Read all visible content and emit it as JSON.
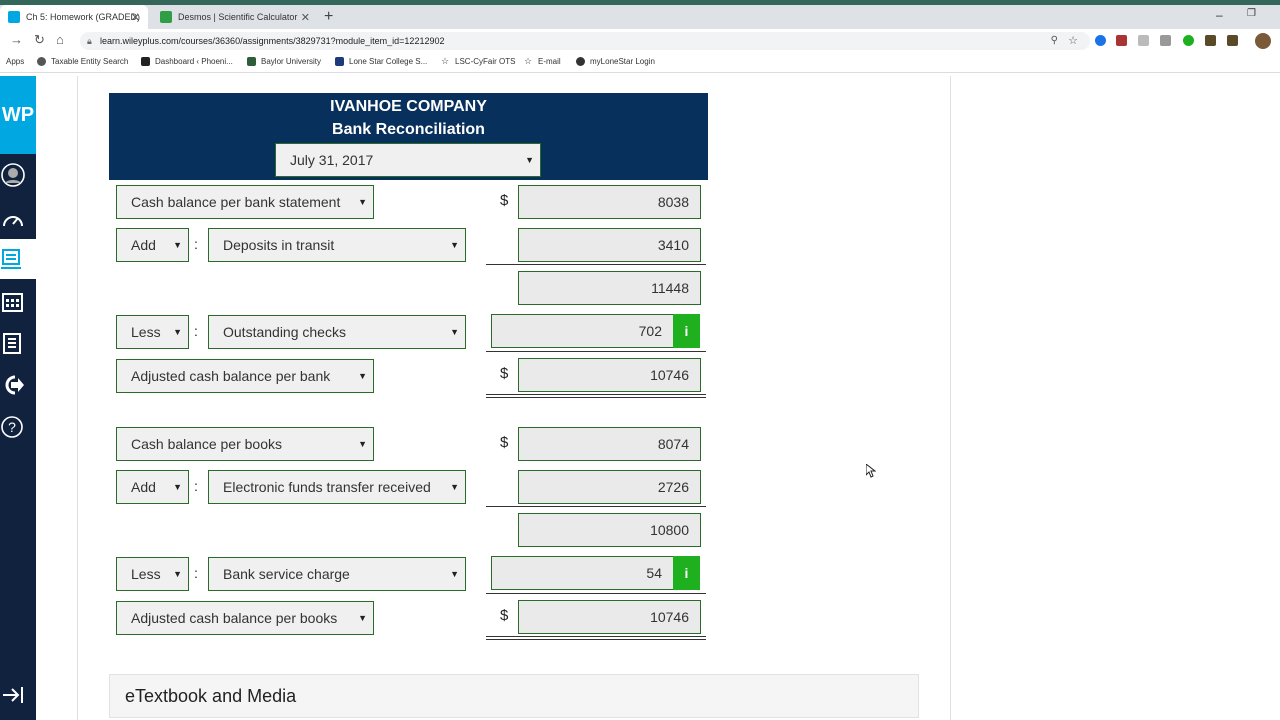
{
  "browser": {
    "tabs": [
      {
        "title": "Ch 5: Homework (GRADED)"
      },
      {
        "title": "Desmos | Scientific Calculator"
      }
    ],
    "new_tab_glyph": "+",
    "url": "learn.wileyplus.com/courses/36360/assignments/3829731?module_item_id=12212902",
    "bookmarks": [
      {
        "label": "Apps"
      },
      {
        "label": "Taxable Entity Search"
      },
      {
        "label": "Dashboard ‹ Phoeni..."
      },
      {
        "label": "Baylor University"
      },
      {
        "label": "Lone Star College S..."
      },
      {
        "label": "LSC-CyFair OTS"
      },
      {
        "label": "E-mail"
      },
      {
        "label": "myLoneStar Login"
      }
    ]
  },
  "sidebar": {
    "logo": "WP",
    "icons": [
      "user-icon",
      "dashboard-gauge-icon",
      "assignment-icon",
      "calendar-icon",
      "gradebook-icon",
      "logout-icon",
      "help-icon",
      "collapse-icon"
    ]
  },
  "reconciliation": {
    "company": "IVANHOE COMPANY",
    "title": "Bank Reconciliation",
    "date": "July 31, 2017",
    "currency": "$",
    "bank_section": {
      "start_label": "Cash balance per bank statement",
      "start_value": "8038",
      "add_op": "Add",
      "add_label": "Deposits in transit",
      "add_value": "3410",
      "subtotal": "11448",
      "less_op": "Less",
      "less_label": "Outstanding checks",
      "less_value": "702",
      "adjusted_label": "Adjusted cash balance per bank",
      "adjusted_value": "10746"
    },
    "books_section": {
      "start_label": "Cash balance per books",
      "start_value": "8074",
      "add_op": "Add",
      "add_label": "Electronic funds transfer received",
      "add_value": "2726",
      "subtotal": "10800",
      "less_op": "Less",
      "less_label": "Bank service charge",
      "less_value": "54",
      "adjusted_label": "Adjusted cash balance per books",
      "adjusted_value": "10746"
    },
    "info_glyph": "i",
    "colon": ":"
  },
  "etextbook": {
    "label": "eTextbook and Media"
  },
  "colors": {
    "header_bg": "#08305c",
    "accent_green": "#1fb01f",
    "sidebar_bg": "#11223f",
    "logo_bg": "#00a7e1"
  }
}
